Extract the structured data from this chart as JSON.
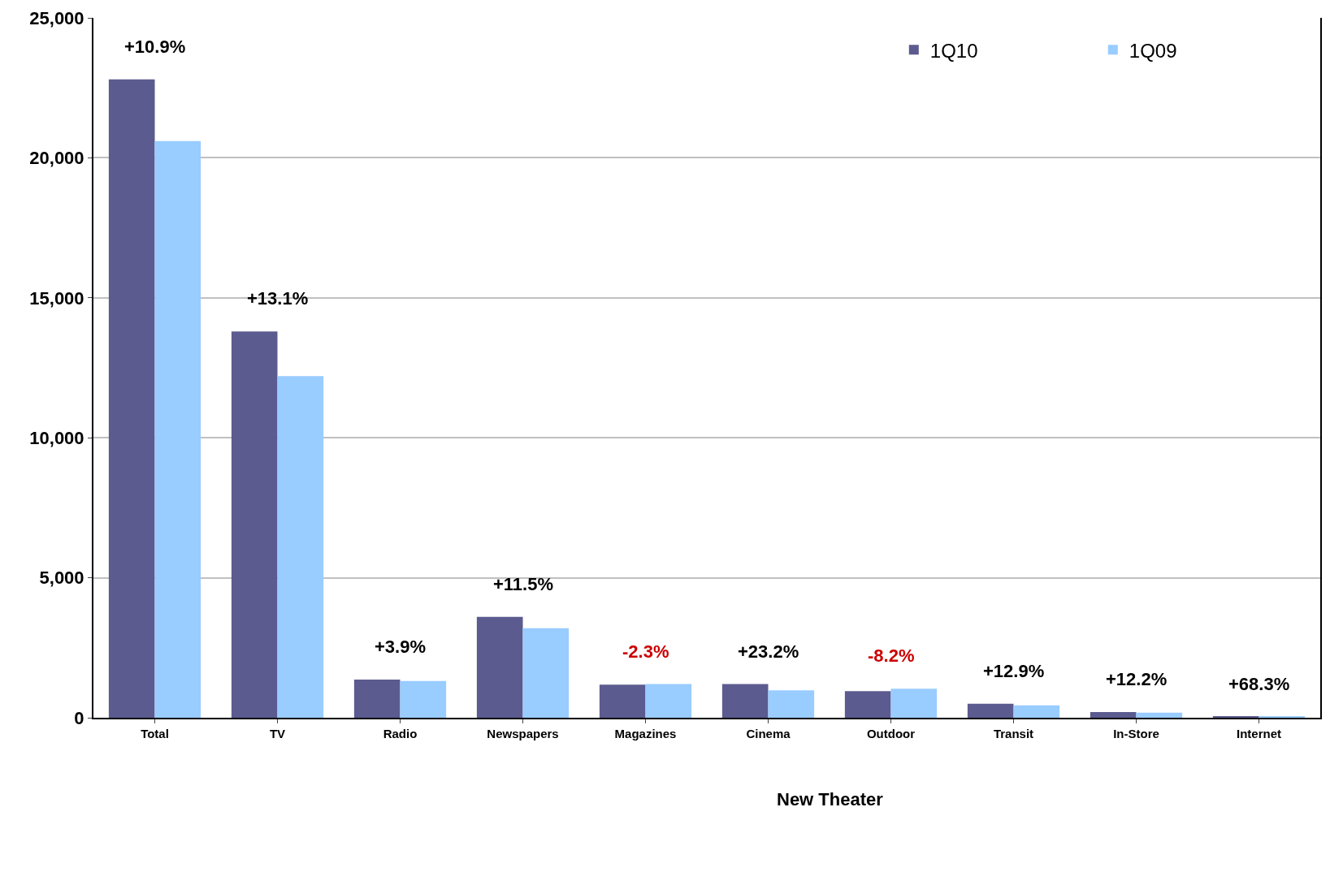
{
  "chart_data": {
    "type": "bar",
    "categories": [
      "Total",
      "TV",
      "Radio",
      "Newspapers",
      "Magazines",
      "Cinema",
      "Outdoor",
      "Transit",
      "In-Store",
      "Internet"
    ],
    "series": [
      {
        "name": "1Q10",
        "color": "#5b5b8f",
        "values": [
          22800,
          13800,
          1360,
          3600,
          1180,
          1200,
          950,
          500,
          200,
          40
        ]
      },
      {
        "name": "1Q09",
        "color": "#99ccff",
        "values": [
          20600,
          12200,
          1310,
          3200,
          1200,
          980,
          1040,
          440,
          180,
          30
        ]
      }
    ],
    "ylim": [
      0,
      25000
    ],
    "yticks": [
      {
        "value": 0,
        "label": "0"
      },
      {
        "value": 5000,
        "label": "5,000"
      },
      {
        "value": 10000,
        "label": "10,000"
      },
      {
        "value": 15000,
        "label": "15,000"
      },
      {
        "value": 20000,
        "label": "20,000"
      },
      {
        "value": 25000,
        "label": "25,000"
      }
    ],
    "grid": "y",
    "legend": "top right",
    "annotations": [
      "+10.9%",
      "+13.1%",
      "+3.9%",
      "+11.5%",
      "-2.3%",
      "+23.2%",
      "-8.2%",
      "+12.9%",
      "+12.2%",
      "+68.3%",
      "New Theater"
    ]
  }
}
